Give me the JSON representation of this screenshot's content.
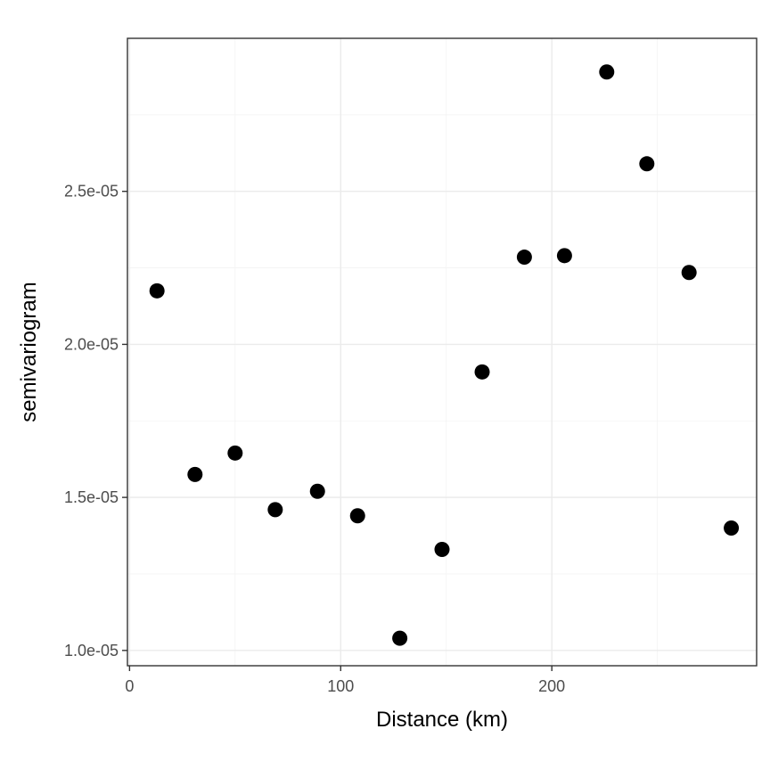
{
  "chart_data": {
    "type": "scatter",
    "title": "",
    "xlabel": "Distance (km)",
    "ylabel": "semivariogram",
    "xlim": [
      -1,
      297
    ],
    "ylim": [
      9.5e-06,
      3e-05
    ],
    "x_ticks": [
      0,
      100,
      200
    ],
    "x_tick_labels": [
      "0",
      "100",
      "200"
    ],
    "y_ticks": [
      1e-05,
      1.5e-05,
      2e-05,
      2.5e-05
    ],
    "y_tick_labels": [
      "1.0e-05",
      "1.5e-05",
      "2.0e-05",
      "2.5e-05"
    ],
    "grid": true,
    "legend": "none",
    "point_color": "#000000",
    "series": [
      {
        "x": [
          13,
          31,
          50,
          69,
          89,
          108,
          128,
          148,
          167,
          187,
          206,
          226,
          245,
          265,
          285
        ],
        "y": [
          2.175e-05,
          1.575e-05,
          1.645e-05,
          1.46e-05,
          1.52e-05,
          1.44e-05,
          1.04e-05,
          1.33e-05,
          1.91e-05,
          2.285e-05,
          2.29e-05,
          2.89e-05,
          2.59e-05,
          2.235e-05,
          1.4e-05
        ]
      }
    ]
  }
}
